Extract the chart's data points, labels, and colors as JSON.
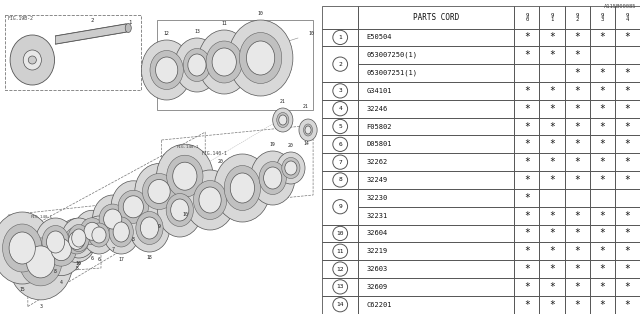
{
  "fig_label": "A115B00085",
  "table_header": "PARTS CORD",
  "columns": [
    "9\n0",
    "9\n1",
    "9\n2",
    "9\n3",
    "9\n4"
  ],
  "rows": [
    {
      "num": "1",
      "code": "E50504",
      "marks": [
        true,
        true,
        true,
        true,
        true
      ]
    },
    {
      "num": "2",
      "code": "053007250(1)",
      "marks": [
        true,
        true,
        true,
        false,
        false
      ]
    },
    {
      "num": "2",
      "code": "053007251(1)",
      "marks": [
        false,
        false,
        true,
        true,
        true
      ]
    },
    {
      "num": "3",
      "code": "G34101",
      "marks": [
        true,
        true,
        true,
        true,
        true
      ]
    },
    {
      "num": "4",
      "code": "32246",
      "marks": [
        true,
        true,
        true,
        true,
        true
      ]
    },
    {
      "num": "5",
      "code": "F05802",
      "marks": [
        true,
        true,
        true,
        true,
        true
      ]
    },
    {
      "num": "6",
      "code": "D05801",
      "marks": [
        true,
        true,
        true,
        true,
        true
      ]
    },
    {
      "num": "7",
      "code": "32262",
      "marks": [
        true,
        true,
        true,
        true,
        true
      ]
    },
    {
      "num": "8",
      "code": "32249",
      "marks": [
        true,
        true,
        true,
        true,
        true
      ]
    },
    {
      "num": "9",
      "code": "32230",
      "marks": [
        true,
        false,
        false,
        false,
        false
      ]
    },
    {
      "num": "9",
      "code": "32231",
      "marks": [
        true,
        true,
        true,
        true,
        true
      ]
    },
    {
      "num": "10",
      "code": "32604",
      "marks": [
        true,
        true,
        true,
        true,
        true
      ]
    },
    {
      "num": "11",
      "code": "32219",
      "marks": [
        true,
        true,
        true,
        true,
        true
      ]
    },
    {
      "num": "12",
      "code": "32603",
      "marks": [
        true,
        true,
        true,
        true,
        true
      ]
    },
    {
      "num": "13",
      "code": "32609",
      "marks": [
        true,
        true,
        true,
        true,
        true
      ]
    },
    {
      "num": "14",
      "code": "C62201",
      "marks": [
        true,
        true,
        true,
        true,
        true
      ]
    }
  ],
  "bg_color": "#ffffff"
}
